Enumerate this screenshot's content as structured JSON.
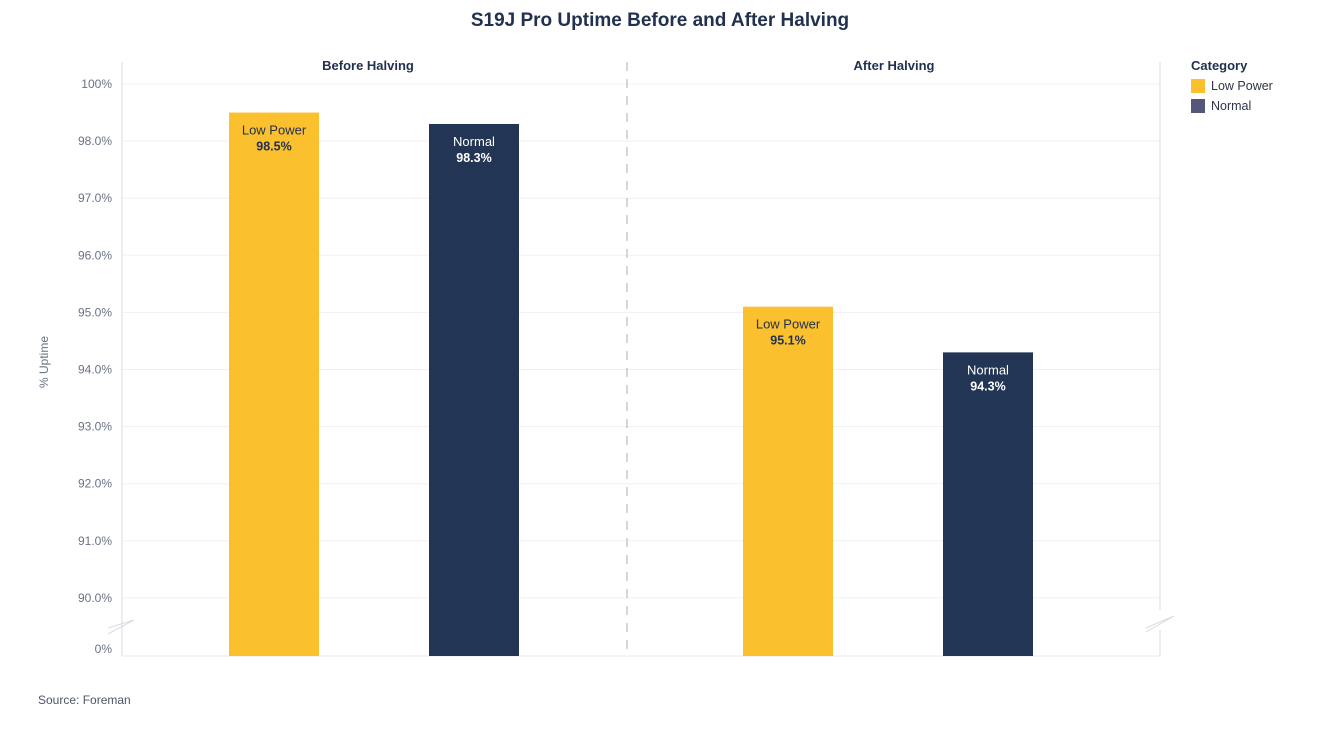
{
  "chart_data": {
    "type": "bar",
    "title": "S19J Pro Uptime Before and After Halving",
    "ylabel": "% Uptime",
    "y_tick_labels": [
      "0%",
      "90.0%",
      "91.0%",
      "92.0%",
      "93.0%",
      "94.0%",
      "95.0%",
      "96.0%",
      "97.0%",
      "98.0%",
      "100%"
    ],
    "y_axis_break": true,
    "grid": true,
    "legend": {
      "title": "Category",
      "placement": "right",
      "items": [
        {
          "label": "Low Power",
          "color": "#fbc02d"
        },
        {
          "label": "Normal",
          "color": "#54567a"
        }
      ]
    },
    "facets": [
      {
        "name": "Before Halving",
        "bars": [
          {
            "category": "Low Power",
            "label": "Low Power",
            "value": 98.5,
            "value_label": "98.5%",
            "color": "#fbc02d",
            "text_color": "#22314f"
          },
          {
            "category": "Normal",
            "label": "Normal",
            "value": 98.3,
            "value_label": "98.3%",
            "color": "#223554",
            "text_color": "#ffffff"
          }
        ]
      },
      {
        "name": "After Halving",
        "bars": [
          {
            "category": "Low Power",
            "label": "Low Power",
            "value": 95.1,
            "value_label": "95.1%",
            "color": "#fbc02d",
            "text_color": "#22314f"
          },
          {
            "category": "Normal",
            "label": "Normal",
            "value": 94.3,
            "value_label": "94.3%",
            "color": "#223554",
            "text_color": "#ffffff"
          }
        ]
      }
    ]
  },
  "source": "Source: Foreman"
}
